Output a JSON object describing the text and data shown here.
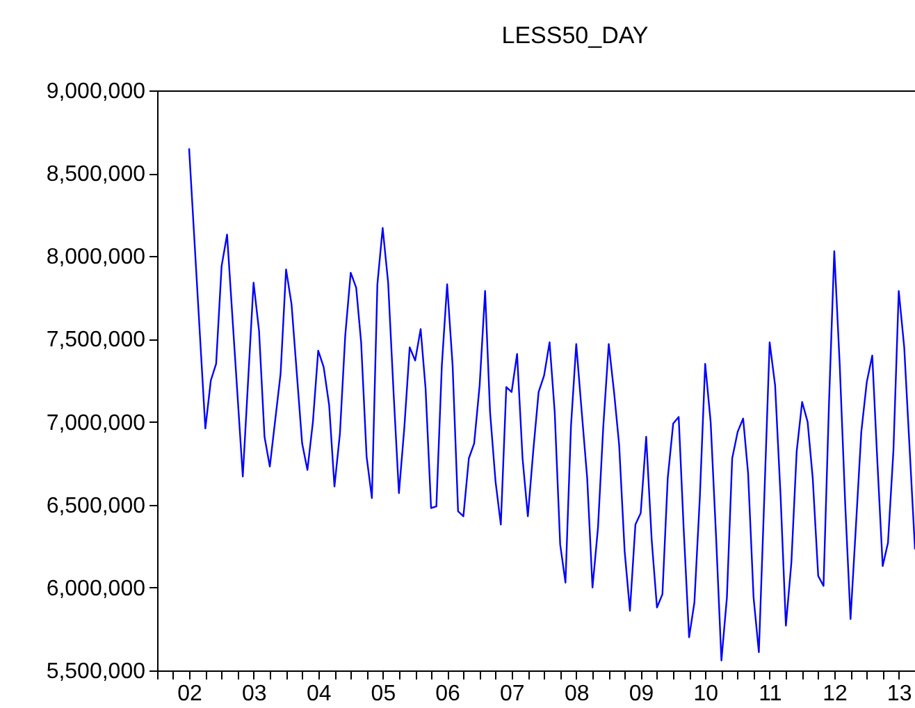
{
  "chart_data": {
    "type": "line",
    "title": "LESS50_DAY",
    "x": [
      "2002-07",
      "2002-10",
      "2002-11",
      "2002-12",
      "2003-01",
      "2003-02",
      "2003-05",
      "2003-07",
      "2003-08",
      "2003-09",
      "2003-10",
      "2003-12",
      "2004-01",
      "2004-02",
      "2004-04",
      "2004-05",
      "2004-06",
      "2004-07",
      "2004-08",
      "2004-09",
      "2004-10",
      "2004-11",
      "2004-12",
      "2005-01",
      "2005-02",
      "2005-03",
      "2005-04",
      "2005-05",
      "2005-06",
      "2005-07",
      "2005-08",
      "2005-09",
      "2005-10",
      "2005-11",
      "2005-12",
      "2006-01",
      "2006-02",
      "2006-03",
      "2006-04",
      "2006-05",
      "2006-06",
      "2006-07",
      "2006-08",
      "2006-09",
      "2006-10",
      "2006-11",
      "2006-12",
      "2007-01",
      "2007-02",
      "2007-03",
      "2007-04",
      "2007-05",
      "2007-06",
      "2007-07",
      "2007-08",
      "2007-09",
      "2007-10",
      "2007-11",
      "2007-12",
      "2008-01",
      "2008-02",
      "2008-03",
      "2008-04",
      "2008-05",
      "2008-06",
      "2008-07",
      "2008-08",
      "2008-09",
      "2008-10",
      "2008-11",
      "2008-12",
      "2009-01",
      "2009-02",
      "2009-03",
      "2009-04",
      "2009-05",
      "2009-06",
      "2009-07",
      "2009-08",
      "2009-09",
      "2009-10",
      "2009-11",
      "2009-12",
      "2010-01",
      "2010-02",
      "2010-03",
      "2010-04",
      "2010-05",
      "2010-06",
      "2010-07",
      "2010-08",
      "2010-09",
      "2010-10",
      "2010-11",
      "2010-12",
      "2011-01",
      "2011-02",
      "2011-03",
      "2011-04",
      "2011-05",
      "2011-06",
      "2011-07",
      "2011-08",
      "2011-09",
      "2011-10",
      "2011-11",
      "2011-12",
      "2012-01",
      "2012-02",
      "2012-03",
      "2012-04",
      "2012-05",
      "2012-06",
      "2012-07",
      "2012-08",
      "2012-09",
      "2012-10",
      "2012-11",
      "2012-12",
      "2013-01",
      "2013-02",
      "2013-03",
      "2013-04",
      "2013-05",
      "2013-06",
      "2013-07",
      "2013-08",
      "2013-09",
      "2013-10"
    ],
    "series": [
      {
        "color": "#0000ff",
        "values": [
          8650000,
          6960000,
          7250000,
          7350000,
          7940000,
          8130000,
          6670000,
          7840000,
          7550000,
          6910000,
          6730000,
          7290000,
          7920000,
          7710000,
          6870000,
          6710000,
          7000000,
          7430000,
          7330000,
          7100000,
          6610000,
          6930000,
          7520000,
          7900000,
          7810000,
          7480000,
          6790000,
          6540000,
          7830000,
          8170000,
          7840000,
          7170000,
          6570000,
          6970000,
          7450000,
          7370000,
          7560000,
          7200000,
          6480000,
          6490000,
          7340000,
          7830000,
          7340000,
          6460000,
          6430000,
          6780000,
          6870000,
          7220000,
          7790000,
          7060000,
          6640000,
          6380000,
          7210000,
          7180000,
          7410000,
          6780000,
          6430000,
          6830000,
          7180000,
          7280000,
          7480000,
          7060000,
          6260000,
          6030000,
          6970000,
          7470000,
          7060000,
          6660000,
          6000000,
          6360000,
          6970000,
          7470000,
          7170000,
          6860000,
          6220000,
          5860000,
          6380000,
          6450000,
          6910000,
          6290000,
          5880000,
          5960000,
          6660000,
          6990000,
          7030000,
          6360000,
          5700000,
          5910000,
          6550000,
          7350000,
          7000000,
          6300000,
          5560000,
          5940000,
          6780000,
          6940000,
          7020000,
          6690000,
          5940000,
          5610000,
          6550000,
          7480000,
          7220000,
          6550000,
          5770000,
          6150000,
          6820000,
          7120000,
          7000000,
          6660000,
          6070000,
          6010000,
          7110000,
          8030000,
          7340000,
          6500000,
          5810000,
          6380000,
          6940000,
          7240000,
          7400000,
          6780000,
          6130000,
          6270000,
          6830000,
          7790000,
          7450000,
          6830000,
          6230000
        ]
      }
    ],
    "xlim": [
      "2002-01",
      "2013-10"
    ],
    "xticks": [
      {
        "value": "2002-01",
        "label": null
      },
      {
        "value": "2002-04",
        "label": null
      },
      {
        "value": "2002-07",
        "label": "02"
      },
      {
        "value": "2002-10",
        "label": null
      },
      {
        "value": "2003-01",
        "label": null
      },
      {
        "value": "2003-04",
        "label": null
      },
      {
        "value": "2003-07",
        "label": "03"
      },
      {
        "value": "2003-10",
        "label": null
      },
      {
        "value": "2004-01",
        "label": null
      },
      {
        "value": "2004-04",
        "label": null
      },
      {
        "value": "2004-07",
        "label": "04"
      },
      {
        "value": "2004-10",
        "label": null
      },
      {
        "value": "2005-01",
        "label": null
      },
      {
        "value": "2005-04",
        "label": null
      },
      {
        "value": "2005-07",
        "label": "05"
      },
      {
        "value": "2005-10",
        "label": null
      },
      {
        "value": "2006-01",
        "label": null
      },
      {
        "value": "2006-04",
        "label": null
      },
      {
        "value": "2006-07",
        "label": "06"
      },
      {
        "value": "2006-10",
        "label": null
      },
      {
        "value": "2007-01",
        "label": null
      },
      {
        "value": "2007-04",
        "label": null
      },
      {
        "value": "2007-07",
        "label": "07"
      },
      {
        "value": "2007-10",
        "label": null
      },
      {
        "value": "2008-01",
        "label": null
      },
      {
        "value": "2008-04",
        "label": null
      },
      {
        "value": "2008-07",
        "label": "08"
      },
      {
        "value": "2008-10",
        "label": null
      },
      {
        "value": "2009-01",
        "label": null
      },
      {
        "value": "2009-04",
        "label": null
      },
      {
        "value": "2009-07",
        "label": "09"
      },
      {
        "value": "2009-10",
        "label": null
      },
      {
        "value": "2010-01",
        "label": null
      },
      {
        "value": "2010-04",
        "label": null
      },
      {
        "value": "2010-07",
        "label": "10"
      },
      {
        "value": "2010-10",
        "label": null
      },
      {
        "value": "2011-01",
        "label": null
      },
      {
        "value": "2011-04",
        "label": null
      },
      {
        "value": "2011-07",
        "label": "11"
      },
      {
        "value": "2011-10",
        "label": null
      },
      {
        "value": "2012-01",
        "label": null
      },
      {
        "value": "2012-04",
        "label": null
      },
      {
        "value": "2012-07",
        "label": "12"
      },
      {
        "value": "2012-10",
        "label": null
      },
      {
        "value": "2013-01",
        "label": null
      },
      {
        "value": "2013-04",
        "label": null
      },
      {
        "value": "2013-07",
        "label": "13"
      },
      {
        "value": "2013-10",
        "label": null
      }
    ],
    "ylim": [
      5500000,
      9000000
    ],
    "yticks": [
      {
        "value": 5500000,
        "label": "5,500,000"
      },
      {
        "value": 6000000,
        "label": "6,000,000"
      },
      {
        "value": 6500000,
        "label": "6,500,000"
      },
      {
        "value": 7000000,
        "label": "7,000,000"
      },
      {
        "value": 7500000,
        "label": "7,500,000"
      },
      {
        "value": 8000000,
        "label": "8,000,000"
      },
      {
        "value": 8500000,
        "label": "8,500,000"
      },
      {
        "value": 9000000,
        "label": "9,000,000"
      }
    ],
    "grid": false,
    "legend": false,
    "marker": "none",
    "line_style": "solid"
  }
}
